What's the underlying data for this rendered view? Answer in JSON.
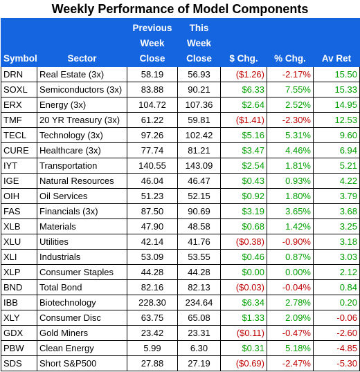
{
  "title": "Weekly Performance of Model Components",
  "headers": {
    "symbol": "Symbol",
    "sector": "Sector",
    "prev_line1": "Previous",
    "prev_line2": "Week",
    "prev_line3": "Close",
    "this_line1": "This",
    "this_line2": "Week",
    "this_line3": "Close",
    "chg": "$ Chg.",
    "pct": "% Chg.",
    "avret": "Av Ret"
  },
  "colors": {
    "header_bg": "#1565e0",
    "negative": "#c00000",
    "positive": "#00a000"
  },
  "rows": [
    {
      "symbol": "DRN",
      "sector": "Real Estate (3x)",
      "prev": "58.19",
      "curr": "56.93",
      "chg": "($1.26)",
      "pct": "-2.17%",
      "avret": "15.50",
      "neg": true,
      "avneg": false
    },
    {
      "symbol": "SOXL",
      "sector": "Semiconductors (3x)",
      "prev": "83.88",
      "curr": "90.21",
      "chg": "$6.33",
      "pct": "7.55%",
      "avret": "15.33",
      "neg": false,
      "avneg": false
    },
    {
      "symbol": "ERX",
      "sector": "Energy (3x)",
      "prev": "104.72",
      "curr": "107.36",
      "chg": "$2.64",
      "pct": "2.52%",
      "avret": "14.95",
      "neg": false,
      "avneg": false
    },
    {
      "symbol": "TMF",
      "sector": "20 YR Treasury (3x)",
      "prev": "61.22",
      "curr": "59.81",
      "chg": "($1.41)",
      "pct": "-2.30%",
      "avret": "12.53",
      "neg": true,
      "avneg": false
    },
    {
      "symbol": "TECL",
      "sector": "Technology (3x)",
      "prev": "97.26",
      "curr": "102.42",
      "chg": "$5.16",
      "pct": "5.31%",
      "avret": "9.60",
      "neg": false,
      "avneg": false
    },
    {
      "symbol": "CURE",
      "sector": "Healthcare (3x)",
      "prev": "77.74",
      "curr": "81.21",
      "chg": "$3.47",
      "pct": "4.46%",
      "avret": "6.94",
      "neg": false,
      "avneg": false
    },
    {
      "symbol": "IYT",
      "sector": "Transportation",
      "prev": "140.55",
      "curr": "143.09",
      "chg": "$2.54",
      "pct": "1.81%",
      "avret": "5.21",
      "neg": false,
      "avneg": false
    },
    {
      "symbol": "IGE",
      "sector": "Natural Resources",
      "prev": "46.04",
      "curr": "46.47",
      "chg": "$0.43",
      "pct": "0.93%",
      "avret": "4.22",
      "neg": false,
      "avneg": false
    },
    {
      "symbol": "OIH",
      "sector": "Oil Services",
      "prev": "51.23",
      "curr": "52.15",
      "chg": "$0.92",
      "pct": "1.80%",
      "avret": "3.79",
      "neg": false,
      "avneg": false
    },
    {
      "symbol": "FAS",
      "sector": "Financials (3x)",
      "prev": "87.50",
      "curr": "90.69",
      "chg": "$3.19",
      "pct": "3.65%",
      "avret": "3.68",
      "neg": false,
      "avneg": false
    },
    {
      "symbol": "XLB",
      "sector": "Materials",
      "prev": "47.90",
      "curr": "48.58",
      "chg": "$0.68",
      "pct": "1.42%",
      "avret": "3.25",
      "neg": false,
      "avneg": false
    },
    {
      "symbol": "XLU",
      "sector": "Utilities",
      "prev": "42.14",
      "curr": "41.76",
      "chg": "($0.38)",
      "pct": "-0.90%",
      "avret": "3.18",
      "neg": true,
      "avneg": false
    },
    {
      "symbol": "XLI",
      "sector": "Industrials",
      "prev": "53.09",
      "curr": "53.55",
      "chg": "$0.46",
      "pct": "0.87%",
      "avret": "3.03",
      "neg": false,
      "avneg": false
    },
    {
      "symbol": "XLP",
      "sector": "Consumer Staples",
      "prev": "44.28",
      "curr": "44.28",
      "chg": "$0.00",
      "pct": "0.00%",
      "avret": "2.12",
      "neg": false,
      "avneg": false
    },
    {
      "symbol": "BND",
      "sector": "Total Bond",
      "prev": "82.16",
      "curr": "82.13",
      "chg": "($0.03)",
      "pct": "-0.04%",
      "avret": "0.84",
      "neg": true,
      "avneg": false
    },
    {
      "symbol": "IBB",
      "sector": "Biotechnology",
      "prev": "228.30",
      "curr": "234.64",
      "chg": "$6.34",
      "pct": "2.78%",
      "avret": "0.20",
      "neg": false,
      "avneg": false
    },
    {
      "symbol": "XLY",
      "sector": "Consumer Disc",
      "prev": "63.75",
      "curr": "65.08",
      "chg": "$1.33",
      "pct": "2.09%",
      "avret": "-0.06",
      "neg": false,
      "avneg": true
    },
    {
      "symbol": "GDX",
      "sector": "Gold Miners",
      "prev": "23.42",
      "curr": "23.31",
      "chg": "($0.11)",
      "pct": "-0.47%",
      "avret": "-2.60",
      "neg": true,
      "avneg": true
    },
    {
      "symbol": "PBW",
      "sector": "Clean Energy",
      "prev": "5.99",
      "curr": "6.30",
      "chg": "$0.31",
      "pct": "5.18%",
      "avret": "-4.85",
      "neg": false,
      "avneg": true
    },
    {
      "symbol": "SDS",
      "sector": "Short S&P500",
      "prev": "27.88",
      "curr": "27.19",
      "chg": "($0.69)",
      "pct": "-2.47%",
      "avret": "-5.30",
      "neg": true,
      "avneg": true
    }
  ]
}
